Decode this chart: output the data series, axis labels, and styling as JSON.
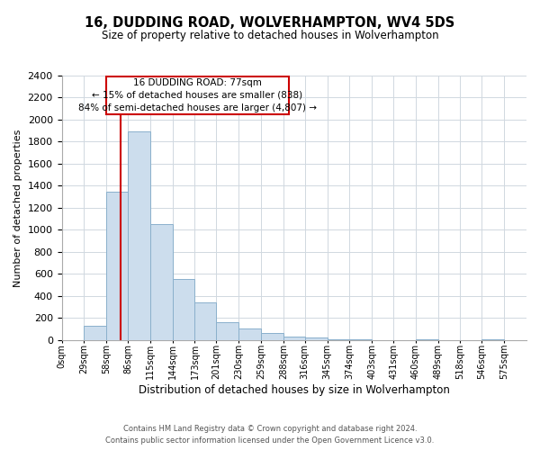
{
  "title": "16, DUDDING ROAD, WOLVERHAMPTON, WV4 5DS",
  "subtitle": "Size of property relative to detached houses in Wolverhampton",
  "xlabel": "Distribution of detached houses by size in Wolverhampton",
  "ylabel": "Number of detached properties",
  "footer_line1": "Contains HM Land Registry data © Crown copyright and database right 2024.",
  "footer_line2": "Contains public sector information licensed under the Open Government Licence v3.0.",
  "bar_labels": [
    "0sqm",
    "29sqm",
    "58sqm",
    "86sqm",
    "115sqm",
    "144sqm",
    "173sqm",
    "201sqm",
    "230sqm",
    "259sqm",
    "288sqm",
    "316sqm",
    "345sqm",
    "374sqm",
    "403sqm",
    "431sqm",
    "460sqm",
    "489sqm",
    "518sqm",
    "546sqm",
    "575sqm"
  ],
  "bar_values": [
    0,
    125,
    1350,
    1890,
    1050,
    550,
    340,
    160,
    105,
    60,
    30,
    20,
    5,
    5,
    0,
    0,
    10,
    0,
    0,
    5,
    0
  ],
  "bar_color": "#ccdded",
  "bar_edge_color": "#8ab0cc",
  "vline_x": 77,
  "vline_color": "#cc0000",
  "ylim": [
    0,
    2400
  ],
  "yticks": [
    0,
    200,
    400,
    600,
    800,
    1000,
    1200,
    1400,
    1600,
    1800,
    2000,
    2200,
    2400
  ],
  "annotation_title": "16 DUDDING ROAD: 77sqm",
  "annotation_line1": "← 15% of detached houses are smaller (838)",
  "annotation_line2": "84% of semi-detached houses are larger (4,807) →",
  "annotation_box_color": "#cc0000"
}
